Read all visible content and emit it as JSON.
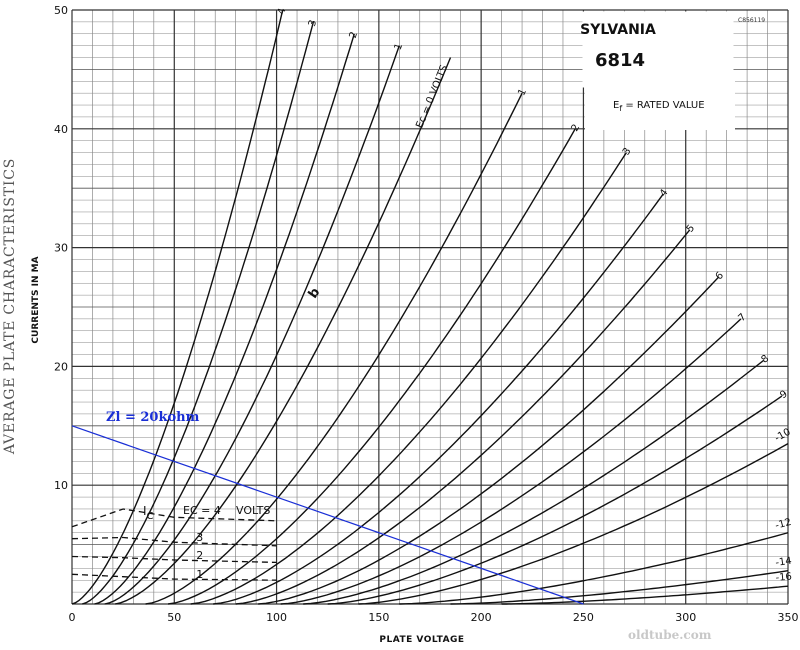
{
  "chart_data": {
    "type": "line",
    "title": "AVERAGE PLATE CHARACTERISTICS",
    "brand": "SYLVANIA",
    "tube": "6814",
    "note_main": "E",
    "note_sub": "f",
    "note_rest": " = RATED VALUE",
    "code": "C856119",
    "xlabel": "PLATE VOLTAGE",
    "ylabel": "CURRENTS IN MA",
    "xlim": [
      0,
      350
    ],
    "ylim": [
      0,
      50
    ],
    "x_ticks": [
      0,
      50,
      100,
      150,
      200,
      250,
      300,
      350
    ],
    "y_ticks": [
      0,
      10,
      20,
      30,
      40,
      50
    ],
    "grid": true,
    "plate_series": [
      {
        "name": "4",
        "label": "4",
        "x0": 0,
        "x1": 103,
        "y1": 50
      },
      {
        "name": "3",
        "label": "3",
        "x0": 5,
        "x1": 118,
        "y1": 49
      },
      {
        "name": "2",
        "label": "2",
        "x0": 11,
        "x1": 138,
        "y1": 48
      },
      {
        "name": "1",
        "label": "1",
        "x0": 16,
        "x1": 160,
        "y1": 47
      },
      {
        "name": "0",
        "label": "Ec = 0 VOLTS",
        "x0": 21,
        "x1": 185,
        "y1": 46
      },
      {
        "name": "-1",
        "label": "-1",
        "x0": 36,
        "x1": 220,
        "y1": 43
      },
      {
        "name": "-2",
        "label": "-2",
        "x0": 47,
        "x1": 246,
        "y1": 40
      },
      {
        "name": "-3",
        "label": "-3",
        "x0": 58,
        "x1": 271,
        "y1": 38
      },
      {
        "name": "-4",
        "label": "-4",
        "x0": 69,
        "x1": 289,
        "y1": 34.5
      },
      {
        "name": "-5",
        "label": "-5",
        "x0": 80,
        "x1": 302,
        "y1": 31.5
      },
      {
        "name": "-6",
        "label": "-6",
        "x0": 91,
        "x1": 316,
        "y1": 27.5
      },
      {
        "name": "-7",
        "label": "-7",
        "x0": 102,
        "x1": 327,
        "y1": 24
      },
      {
        "name": "-8",
        "label": "-8",
        "x0": 113,
        "x1": 338,
        "y1": 20.5
      },
      {
        "name": "-9",
        "label": "-9",
        "x0": 125,
        "x1": 347,
        "y1": 17.5
      },
      {
        "name": "-10",
        "label": "-10",
        "x0": 140,
        "x1": 350,
        "y1": 13.5
      },
      {
        "name": "-12",
        "label": "-12",
        "x0": 160,
        "x1": 350,
        "y1": 6
      },
      {
        "name": "-14",
        "label": "-14",
        "x0": 185,
        "x1": 350,
        "y1": 2.8
      },
      {
        "name": "-16",
        "label": "-16",
        "x0": 210,
        "x1": 350,
        "y1": 1.5
      }
    ],
    "grid_series": [
      {
        "name": "4",
        "label": "4",
        "points": [
          [
            0,
            6.5
          ],
          [
            25,
            8.0
          ],
          [
            50,
            7.3
          ],
          [
            100,
            7.0
          ]
        ]
      },
      {
        "name": "3",
        "label": "3",
        "points": [
          [
            0,
            5.5
          ],
          [
            25,
            5.6
          ],
          [
            50,
            5.2
          ],
          [
            100,
            4.9
          ]
        ]
      },
      {
        "name": "2",
        "label": "2",
        "points": [
          [
            0,
            4.0
          ],
          [
            25,
            3.9
          ],
          [
            50,
            3.7
          ],
          [
            100,
            3.5
          ]
        ]
      },
      {
        "name": "1",
        "label": "1",
        "points": [
          [
            0,
            2.5
          ],
          [
            25,
            2.3
          ],
          [
            50,
            2.1
          ],
          [
            100,
            2.0
          ]
        ]
      }
    ],
    "grid_label_main": "I",
    "grid_label_sub": "C",
    "grid_label_ec": "EC = 4",
    "grid_label_volts": "VOLTS",
    "b_label": "b",
    "load_line": {
      "label": "Zl = 20kohm",
      "points": [
        [
          0,
          15
        ],
        [
          250,
          0
        ]
      ],
      "color": "#1a2fd6"
    },
    "watermark": "oldtube.com"
  }
}
